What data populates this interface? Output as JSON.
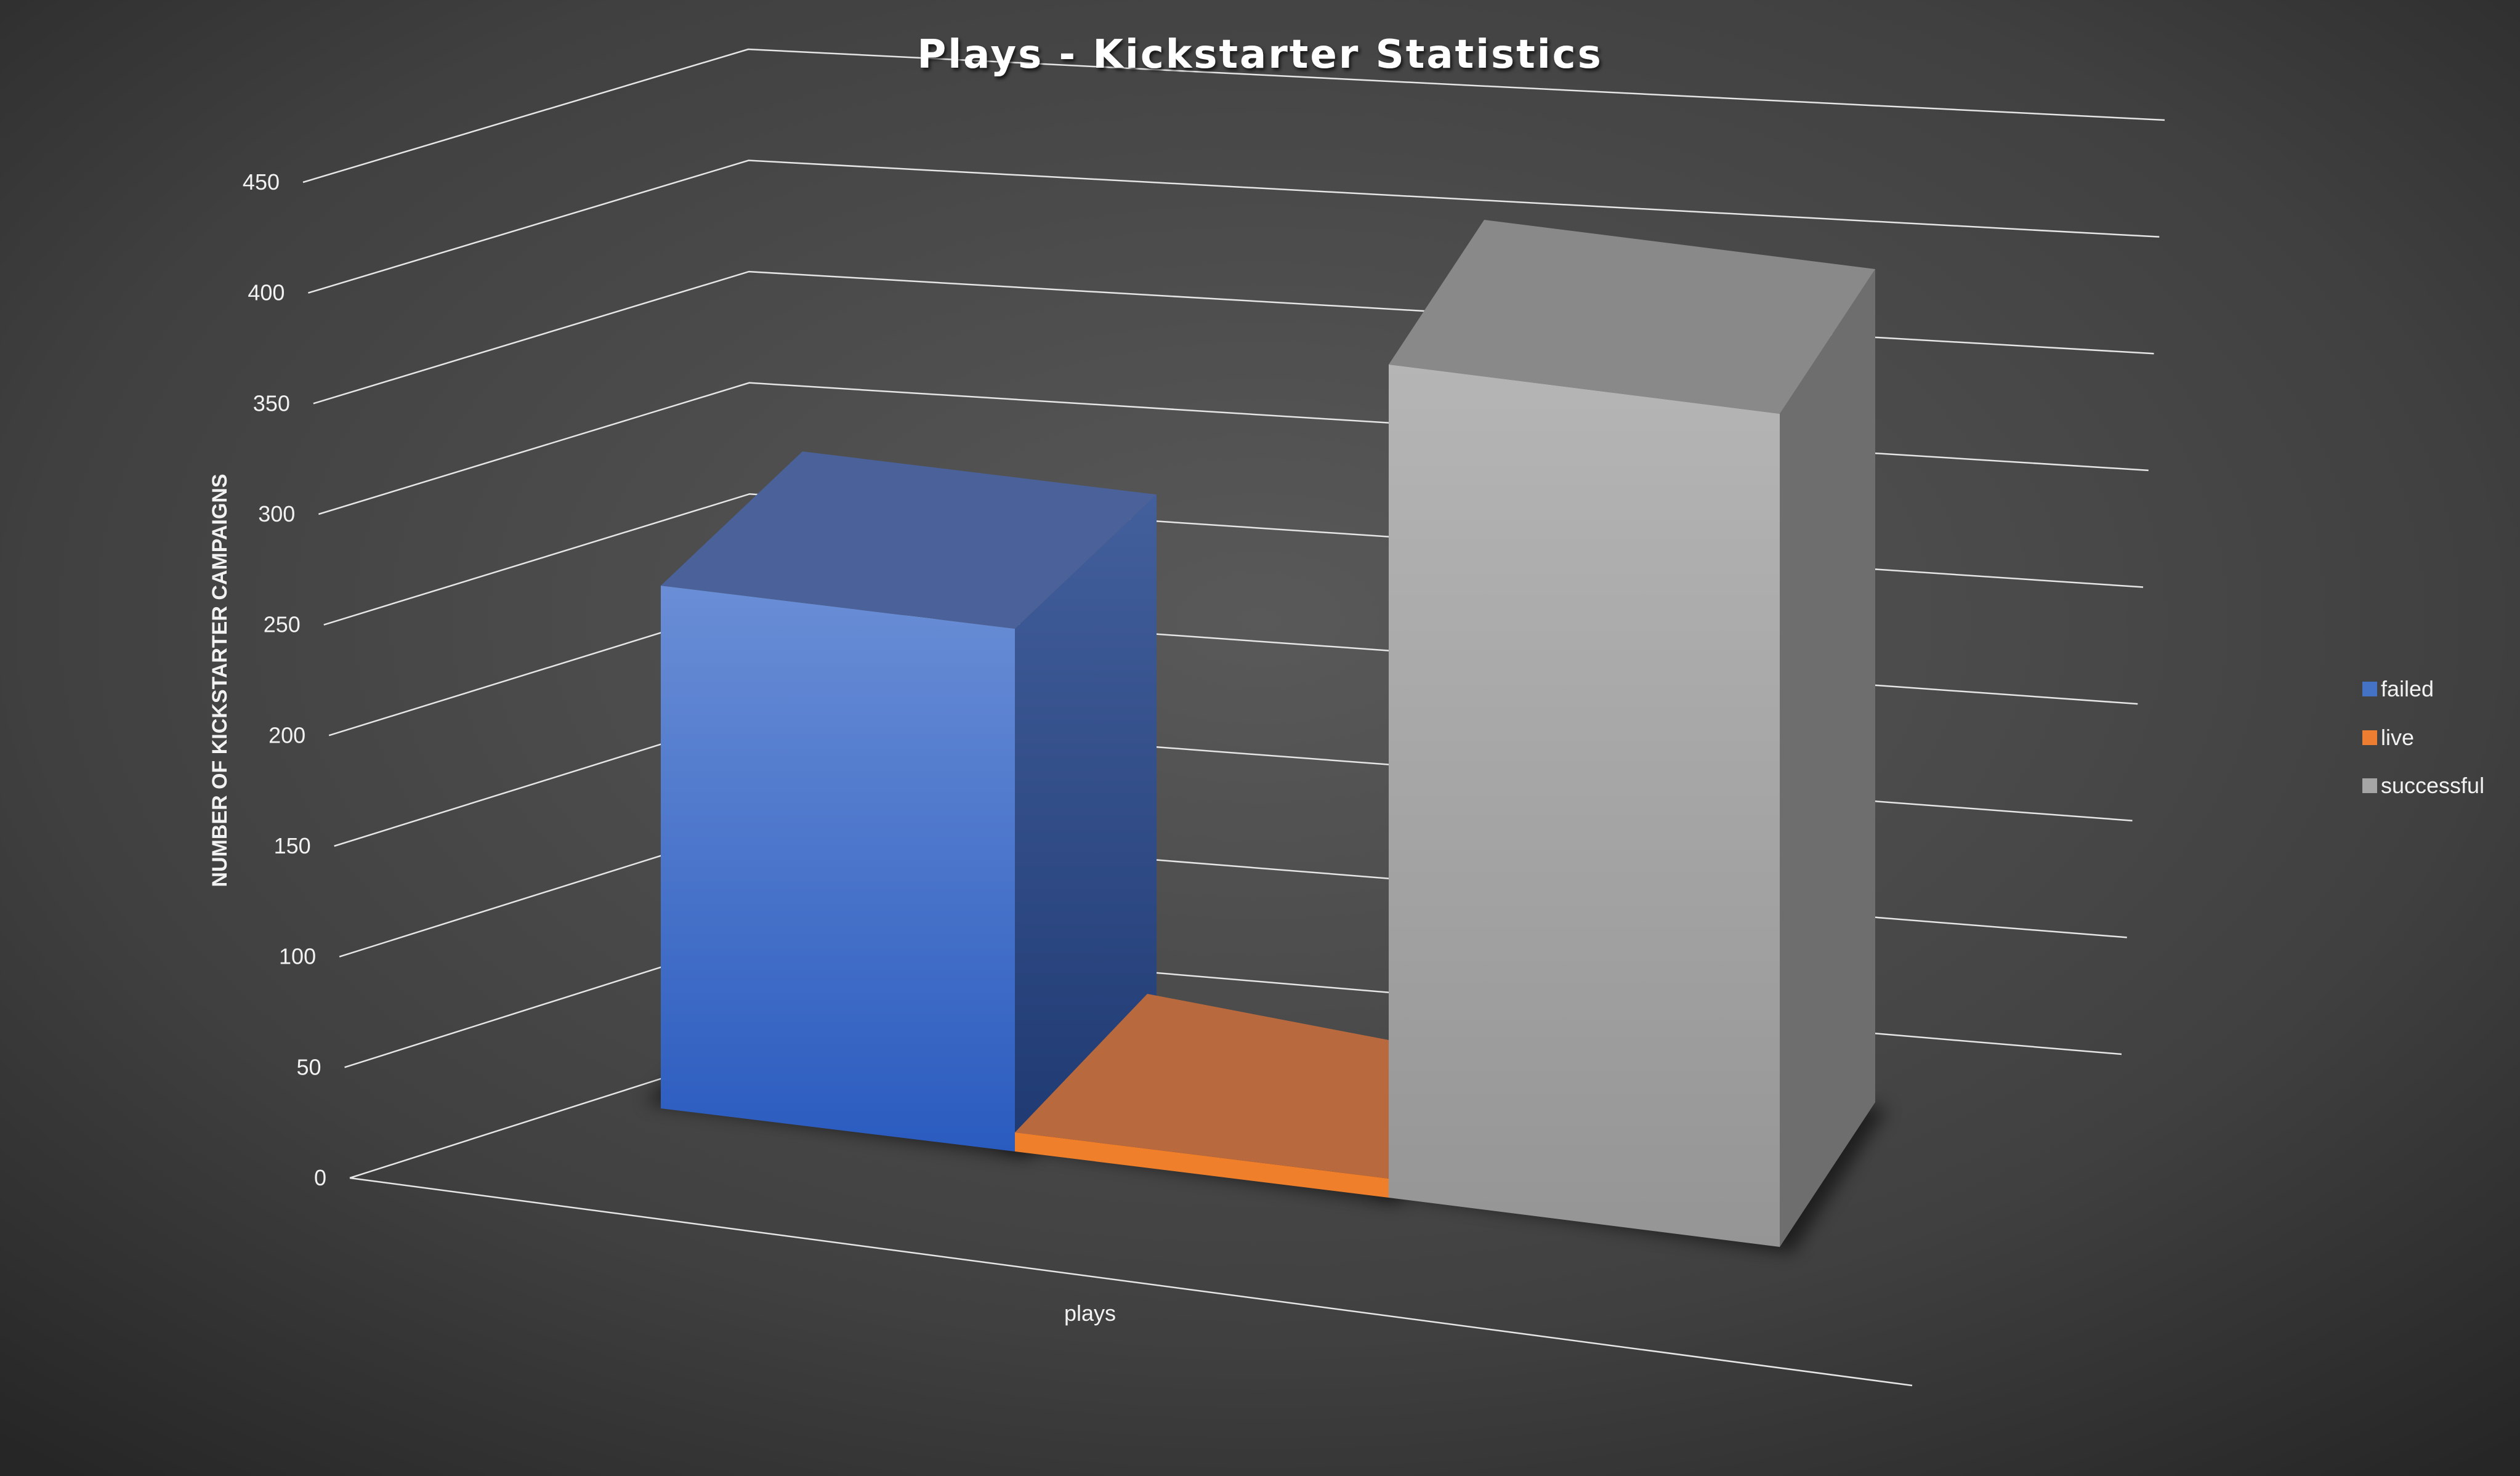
{
  "chart_data": {
    "type": "bar",
    "title": "Plays - Kickstarter Statistics",
    "ylabel": "NUMBER OF KICKSTARTER CAMPAIGNS",
    "xlabel": "",
    "categories": [
      "plays"
    ],
    "series": [
      {
        "name": "failed",
        "values": [
          262
        ],
        "color": "#4472c4"
      },
      {
        "name": "live",
        "values": [
          10
        ],
        "color": "#ed7d31"
      },
      {
        "name": "successful",
        "values": [
          410
        ],
        "color": "#a5a5a5"
      }
    ],
    "ylim": [
      0,
      450
    ],
    "yticks": [
      0,
      50,
      100,
      150,
      200,
      250,
      300,
      350,
      400,
      450
    ],
    "grid": true,
    "legend": "right",
    "style": "3d-column"
  }
}
